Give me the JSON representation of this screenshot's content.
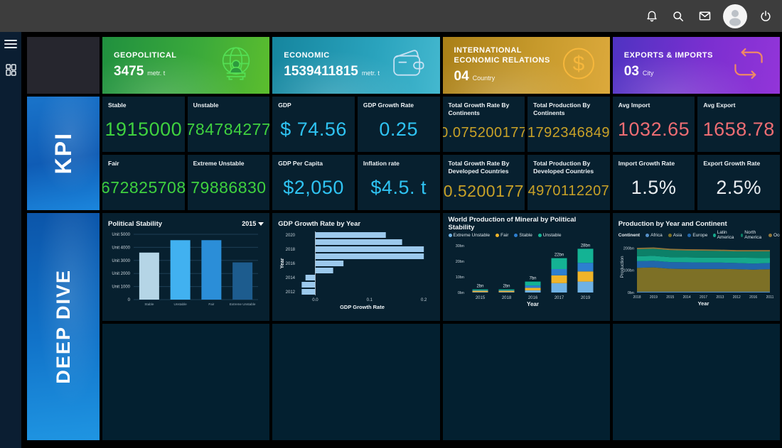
{
  "topbar": {
    "icons": [
      "notifications-icon",
      "search-icon",
      "mail-icon",
      "user-avatar",
      "power-icon"
    ]
  },
  "sidebar": {
    "icons": [
      "menu-icon",
      "dashboard-grid-icon"
    ]
  },
  "sections": {
    "kpi_label": "KPI",
    "deep_dive_label": "DEEP DIVE"
  },
  "summary_cards": [
    {
      "title": "GEOPOLITICAL",
      "value": "3475",
      "unit": "metr. t",
      "icon": "globe-analyst-icon",
      "accent": "#54df54"
    },
    {
      "title": "ECONOMIC",
      "value": "1539411815",
      "unit": "metr. t",
      "icon": "wallet-icon",
      "accent": "#c6e1f3"
    },
    {
      "title": "INTERNATIONAL ECONOMIC RELATIONS",
      "value": "04",
      "unit": "Country",
      "icon": "dollar-coin-icon",
      "accent": "#f6b73c"
    },
    {
      "title": "EXPORTS & IMPORTS",
      "value": "03",
      "unit": "City",
      "icon": "exchange-arrows-icon",
      "accent": "#f08a64"
    }
  ],
  "colors": {
    "green": "#3fd13f",
    "cyan": "#2fc3f2",
    "gold": "#c9a227",
    "salmon": "#ee6d73",
    "white": "#e9edf0"
  },
  "kpi_tiles": [
    {
      "label": "Stable",
      "value": "1915000",
      "color": "#3fd13f"
    },
    {
      "label": "Unstable",
      "value": "784784277",
      "color": "#3fd13f"
    },
    {
      "label": "GDP",
      "value": "$ 74.56",
      "color": "#2fc3f2"
    },
    {
      "label": "GDP Growth Rate",
      "value": "0.25",
      "color": "#2fc3f2"
    },
    {
      "label": "Total Growth Rate By Continents",
      "value": "0.075200177",
      "color": "#c9a227"
    },
    {
      "label": "Total Production By Continents",
      "value": "1792346849",
      "color": "#c9a227"
    },
    {
      "label": "Avg Import",
      "value": "1032.65",
      "color": "#ee6d73"
    },
    {
      "label": "Avg Export",
      "value": "1658.78",
      "color": "#ee6d73"
    },
    {
      "label": "Fair",
      "value": "672825708",
      "color": "#3fd13f"
    },
    {
      "label": "Extreme Unstable",
      "value": "79886830",
      "color": "#3fd13f"
    },
    {
      "label": "GDP Per Capita",
      "value": "$2,050",
      "color": "#2fc3f2"
    },
    {
      "label": "Inflation rate",
      "value": "$4.5. t",
      "color": "#2fc3f2"
    },
    {
      "label": "Total Growth Rate By Developed Countries",
      "value": "0.5200177",
      "color": "#c9a227"
    },
    {
      "label": "Total Production By Developed Countries",
      "value": "4970112207",
      "color": "#c9a227"
    },
    {
      "label": "Import Growth Rate",
      "value": "1.5%",
      "color": "#e9edf0"
    },
    {
      "label": "Export Growth Rate",
      "value": "2.5%",
      "color": "#e9edf0"
    }
  ],
  "chart_data": [
    {
      "type": "bar",
      "title": "Political Stability",
      "filter": "2015",
      "categories": [
        "Stable",
        "Unstable",
        "Fair",
        "Extreme Unstable"
      ],
      "values": [
        3600,
        4550,
        4550,
        2850
      ],
      "bar_colors": [
        "#b5d5e6",
        "#41b1f0",
        "#2b8ed8",
        "#1d5c8e"
      ],
      "ylim": [
        0,
        5000
      ],
      "ytick_values": [
        5000,
        4000,
        3000,
        2000,
        1000,
        0
      ],
      "ytick_labels": [
        "Unit 5000",
        "Unit 4000",
        "Unit 3000",
        "Unit 2000",
        "Unit 1000",
        "0"
      ],
      "grid": true
    },
    {
      "type": "bar-horizontal",
      "title": "GDP Growth Rate by Year",
      "categories": [
        "2020",
        "2019",
        "2018",
        "2017",
        "2016",
        "2015",
        "2014",
        "2013",
        "2012"
      ],
      "values": [
        0.13,
        0.16,
        0.2,
        0.2,
        0.052,
        0.033,
        -0.018,
        -0.025,
        -0.025
      ],
      "visible_ytick_labels": [
        "2020",
        "2018",
        "2016",
        "2014",
        "2012"
      ],
      "bar_color": "#9cc9ec",
      "xlabel": "GDP Growth Rate",
      "ylabel": "Year",
      "xticks": [
        0.0,
        0.1,
        0.2
      ],
      "xtick_labels": [
        "0.0",
        "0.1",
        "0.2"
      ],
      "xlim": [
        -0.032,
        0.205
      ]
    },
    {
      "type": "stacked-bar",
      "title": "World Production of Mineral by Political Stability",
      "categories": [
        "2015",
        "2018",
        "2016",
        "2017",
        "2019"
      ],
      "series": [
        {
          "name": "Extreme Unstable",
          "color": "#6fb1e4",
          "values": [
            0.3,
            0.3,
            1.4,
            6.0,
            7.0
          ]
        },
        {
          "name": "Fair",
          "color": "#f0b429",
          "values": [
            0.8,
            0.8,
            1.6,
            5.0,
            6.5
          ]
        },
        {
          "name": "Stable",
          "color": "#2d7fd0",
          "values": [
            0.3,
            0.3,
            1.5,
            4.0,
            5.5
          ]
        },
        {
          "name": "Unstable",
          "color": "#14b394",
          "values": [
            0.6,
            0.6,
            2.5,
            7.0,
            9.0
          ]
        }
      ],
      "total_labels": [
        "2bn",
        "2bn",
        "7bn",
        "22bn",
        "28bn"
      ],
      "ylim": [
        0,
        30
      ],
      "ytick_values": [
        0,
        10,
        20,
        30
      ],
      "ytick_labels": [
        "0bn",
        "10bn",
        "20bn",
        "30bn"
      ],
      "xlabel": "Year",
      "legend_position": "top"
    },
    {
      "type": "area",
      "title": "Production by Year and Continent",
      "legend_title": "Continent",
      "x": [
        "2018",
        "2019",
        "2015",
        "2014",
        "2017",
        "2013",
        "2012",
        "2016",
        "2011"
      ],
      "series": [
        {
          "name": "Africa",
          "color": "#5590c8",
          "values": [
            4,
            4,
            4,
            4,
            4,
            4,
            4,
            4,
            4
          ]
        },
        {
          "name": "Asia",
          "color": "#7d7026",
          "values": [
            107,
            109,
            103,
            102,
            102,
            102,
            101,
            99,
            101
          ]
        },
        {
          "name": "Europe",
          "color": "#2166ab",
          "values": [
            30,
            30,
            30,
            30,
            29,
            29,
            28,
            27,
            28
          ]
        },
        {
          "name": "Latin America",
          "color": "#16a98c",
          "values": [
            22,
            22,
            22,
            22,
            22,
            22,
            24,
            26,
            22
          ]
        },
        {
          "name": "North America",
          "color": "#0c8068",
          "values": [
            32,
            32,
            32,
            31,
            31,
            30,
            28,
            29,
            30
          ]
        },
        {
          "name": "Oceania",
          "color": "#91763a",
          "values": [
            6,
            6,
            6,
            6,
            6,
            6,
            6,
            6,
            6
          ]
        }
      ],
      "ylim": [
        0,
        230
      ],
      "ytick_values": [
        0,
        100,
        200
      ],
      "ytick_labels": [
        "0bn",
        "100bn",
        "200bn"
      ],
      "xlabel": "Year",
      "ylabel": "Production",
      "legend_position": "top"
    }
  ]
}
